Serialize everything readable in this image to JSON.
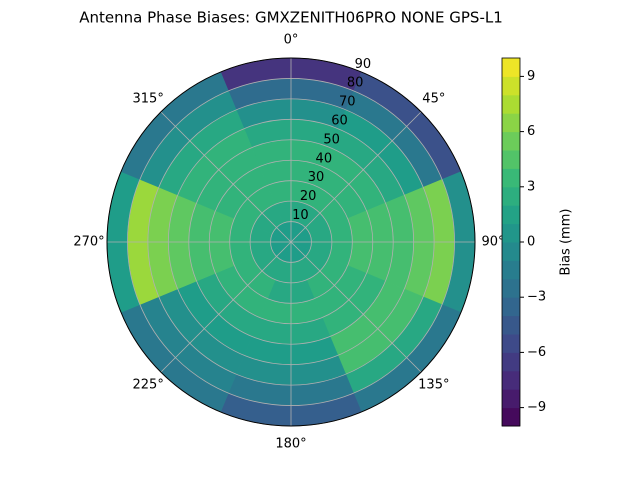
{
  "chart_data": {
    "type": "polar_contour",
    "title": "Antenna Phase Biases: GMXZENITH06PRO  NONE GPS-L1",
    "theta_ticks": [
      {
        "value": 0,
        "label": "0°"
      },
      {
        "value": 45,
        "label": "45°"
      },
      {
        "value": 90,
        "label": "90°"
      },
      {
        "value": 135,
        "label": "135°"
      },
      {
        "value": 180,
        "label": "180°"
      },
      {
        "value": 225,
        "label": "225°"
      },
      {
        "value": 270,
        "label": "270°"
      },
      {
        "value": 315,
        "label": "315°"
      }
    ],
    "rlim": [
      0,
      90
    ],
    "rticks": [
      10,
      20,
      30,
      40,
      50,
      60,
      70,
      80,
      90
    ],
    "grid": true,
    "theta": [
      0,
      45,
      90,
      135,
      180,
      225,
      270,
      315
    ],
    "r": [
      5,
      15,
      25,
      35,
      45,
      55,
      65,
      75,
      85
    ],
    "values": [
      [
        1,
        2,
        3,
        3,
        3,
        2,
        0,
        -3,
        -7
      ],
      [
        1,
        2,
        3,
        3,
        3,
        2,
        1,
        -2,
        -5
      ],
      [
        1,
        2,
        3,
        4,
        4,
        4,
        5,
        6,
        0
      ],
      [
        1,
        2,
        3,
        3,
        3,
        4,
        4,
        2,
        -2
      ],
      [
        1,
        2,
        2,
        3,
        2,
        1,
        0,
        -2,
        -4
      ],
      [
        1,
        2,
        3,
        3,
        2,
        1,
        0,
        -1,
        -2
      ],
      [
        1,
        2,
        3,
        4,
        4,
        5,
        6,
        7,
        1
      ],
      [
        1,
        2,
        3,
        3,
        3,
        3,
        2,
        0,
        -2
      ]
    ],
    "colorbar": {
      "label": "Bias (mm)",
      "lim": [
        -10,
        10
      ],
      "ticks": [
        {
          "value": -9,
          "label": "−9"
        },
        {
          "value": -6,
          "label": "−6"
        },
        {
          "value": -3,
          "label": "−3"
        },
        0,
        3,
        6,
        9
      ],
      "levels": [
        -10,
        -9,
        -8,
        -7,
        -6,
        -5,
        -4,
        -3,
        -2,
        -1,
        0,
        1,
        2,
        3,
        4,
        5,
        6,
        7,
        8,
        9,
        10
      ]
    }
  }
}
